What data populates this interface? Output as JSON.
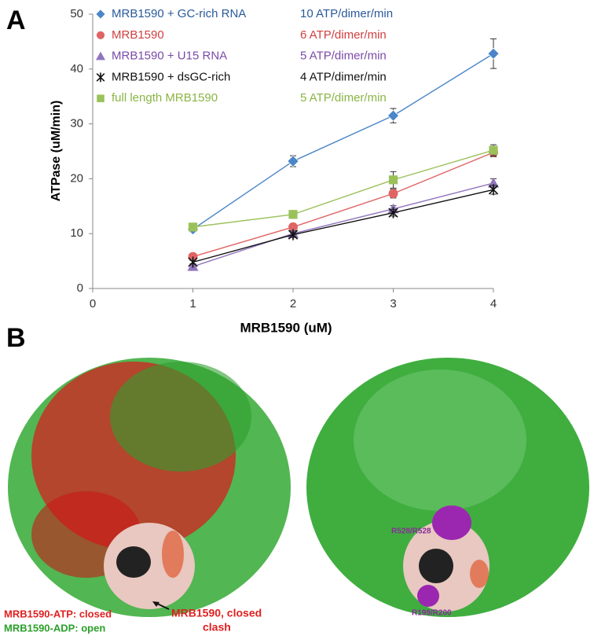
{
  "panel_labels": [
    "A",
    "B"
  ],
  "chart_data": {
    "type": "line",
    "x_label": "MRB1590 (uM)",
    "y_label": "ATPase (uM/min)",
    "x": [
      1,
      2,
      3,
      4
    ],
    "xlim": [
      0,
      4
    ],
    "xticks": [
      0,
      1,
      2,
      3,
      4
    ],
    "ylim": [
      0,
      50
    ],
    "yticks": [
      0,
      10,
      20,
      30,
      40,
      50
    ],
    "series": [
      {
        "name": "MRB1590 + GC-rich RNA",
        "rate_label": "10 ATP/dimer/min",
        "color": "#4a86c8",
        "text_color": "#2a5a9a",
        "marker": "diamond",
        "values": [
          10.8,
          23.2,
          31.5,
          42.8
        ],
        "errors": [
          0.5,
          1.0,
          1.3,
          2.7
        ]
      },
      {
        "name": "MRB1590",
        "rate_label": "6 ATP/dimer/min",
        "color": "#e06464",
        "text_color": "#d04040",
        "marker": "circle",
        "values": [
          5.8,
          11.2,
          17.3,
          24.8
        ],
        "errors": [
          0.4,
          0.6,
          0.8,
          0.8
        ]
      },
      {
        "name": "MRB1590 + U15 RNA",
        "rate_label": "5 ATP/dimer/min",
        "color": "#9175bd",
        "text_color": "#7a4aa8",
        "marker": "triangle",
        "values": [
          4.0,
          10.0,
          14.5,
          19.2
        ],
        "errors": [
          0.3,
          0.5,
          0.6,
          0.8
        ]
      },
      {
        "name": "MRB1590 + dsGC-rich",
        "rate_label": "4 ATP/dimer/min",
        "color": "#111111",
        "text_color": "#111111",
        "marker": "star",
        "values": [
          4.8,
          9.8,
          13.8,
          18.0
        ],
        "errors": [
          0.3,
          0.5,
          0.6,
          0.8
        ]
      },
      {
        "name": "full length MRB1590",
        "rate_label": "5 ATP/dimer/min",
        "color": "#9bc15a",
        "text_color": "#8ab544",
        "marker": "square",
        "values": [
          11.2,
          13.5,
          19.8,
          25.2
        ],
        "errors": [
          0.6,
          0.7,
          1.5,
          1.0
        ]
      }
    ]
  },
  "structure_labels": {
    "left_atp": "MRB1590-ATP: closed",
    "left_adp": "MRB1590-ADP: open",
    "clash_line1": "MRB1590, closed",
    "clash_line2": "clash",
    "site_upper": "R528/R528",
    "site_lower": "R199/R200"
  }
}
